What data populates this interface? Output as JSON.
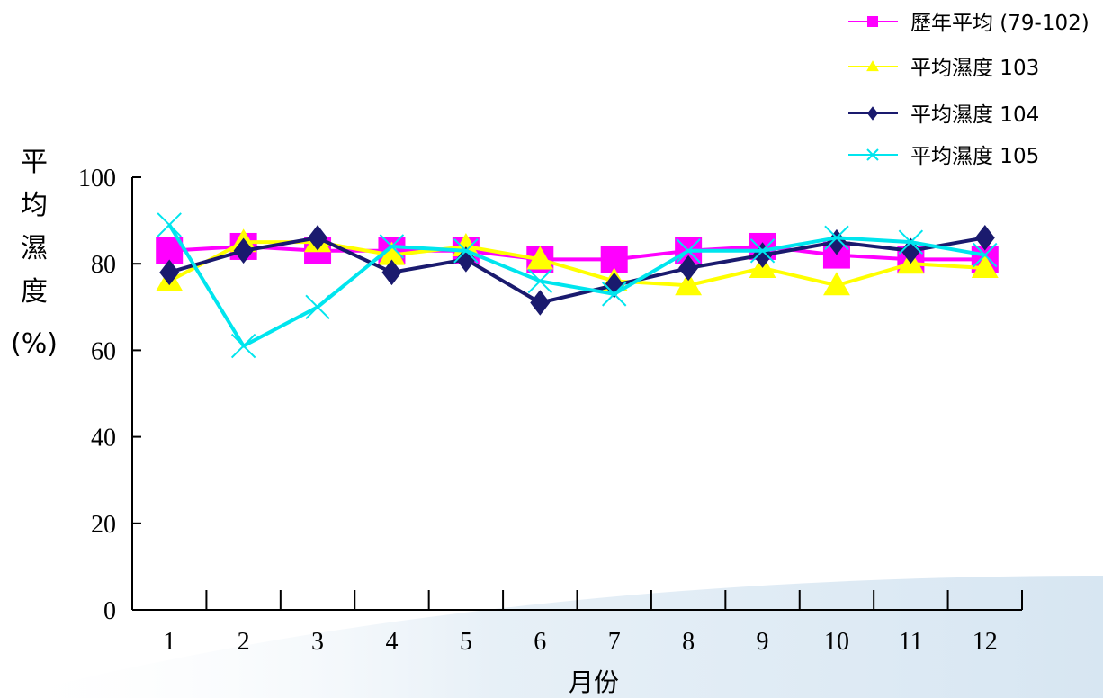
{
  "chart_data": {
    "type": "line",
    "xlabel": "月份",
    "ylabel_chars": [
      "平",
      "均",
      "濕",
      "度",
      "(%)"
    ],
    "categories": [
      "1",
      "2",
      "3",
      "4",
      "5",
      "6",
      "7",
      "8",
      "9",
      "10",
      "11",
      "12"
    ],
    "ylim": [
      0,
      100
    ],
    "yticks": [
      "0",
      "20",
      "40",
      "60",
      "80",
      "100"
    ],
    "grid": false,
    "legend_position": "top-right",
    "series": [
      {
        "name": "歷年平均 (79-102)",
        "marker": "square",
        "color": "#FF00FF",
        "values": [
          83,
          84,
          83,
          83,
          83,
          81,
          81,
          83,
          84,
          82,
          81,
          81
        ]
      },
      {
        "name": "平均濕度 103",
        "marker": "triangle",
        "color": "#FFFF00",
        "values": [
          76,
          85,
          85,
          82,
          84,
          81,
          76,
          75,
          79,
          75,
          80,
          79
        ]
      },
      {
        "name": "平均濕度 104",
        "marker": "diamond",
        "color": "#1A1A6E",
        "values": [
          78,
          83,
          86,
          78,
          81,
          71,
          75,
          79,
          82,
          85,
          83,
          86
        ]
      },
      {
        "name": "平均濕度 105",
        "marker": "cross",
        "color": "#00E5EE",
        "values": [
          89,
          61,
          70,
          84,
          83,
          76,
          73,
          83,
          83,
          86,
          85,
          82
        ]
      }
    ]
  }
}
